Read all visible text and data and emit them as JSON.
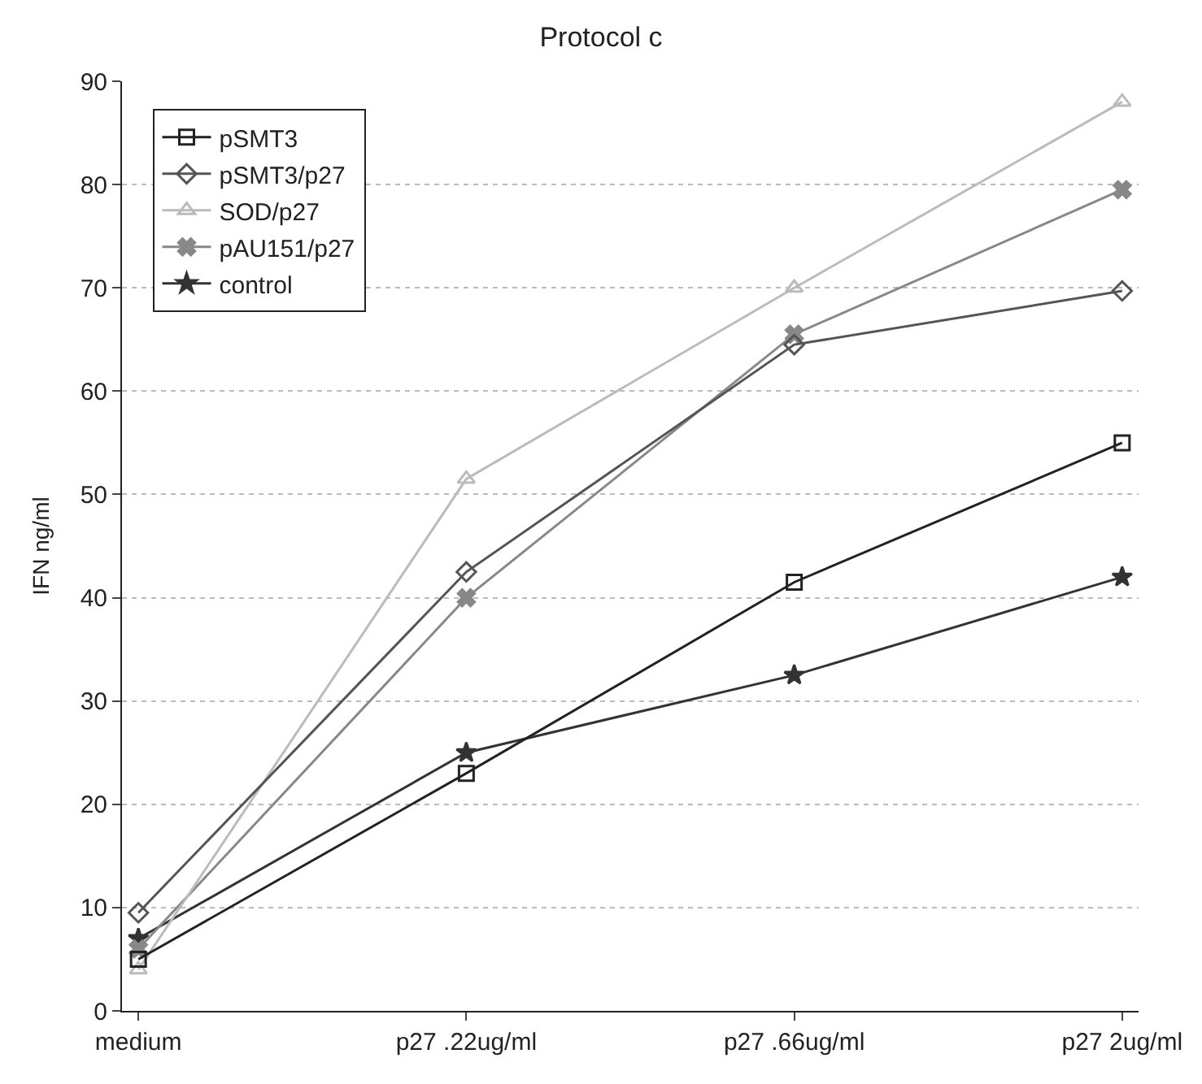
{
  "chart_data": {
    "type": "line",
    "title": "Protocol c",
    "ylabel": "IFN ng/ml",
    "categories": [
      "medium",
      "p27 .22ug/ml",
      "p27 .66ug/ml",
      "p27 2ug/ml"
    ],
    "series": [
      {
        "name": "pSMT3",
        "color": "#222222",
        "values": [
          5,
          23,
          41.5,
          55
        ],
        "marker": "square"
      },
      {
        "name": "pSMT3/p27",
        "color": "#555555",
        "values": [
          9.5,
          42.5,
          64.5,
          69.7
        ],
        "marker": "diamond"
      },
      {
        "name": "SOD/p27",
        "color": "#bbbbbb",
        "values": [
          4,
          51.5,
          70,
          88
        ],
        "marker": "triangle"
      },
      {
        "name": "pAU151/p27",
        "color": "#888888",
        "values": [
          6,
          40,
          65.5,
          79.5
        ],
        "marker": "cross"
      },
      {
        "name": "control",
        "color": "#333333",
        "values": [
          7,
          25,
          32.5,
          42
        ],
        "marker": "star"
      }
    ],
    "ylim": [
      0,
      90
    ],
    "yticks": [
      0,
      10,
      20,
      30,
      40,
      50,
      60,
      70,
      80,
      90
    ],
    "grid": "y",
    "legend": "top left",
    "line_style": "solid"
  }
}
